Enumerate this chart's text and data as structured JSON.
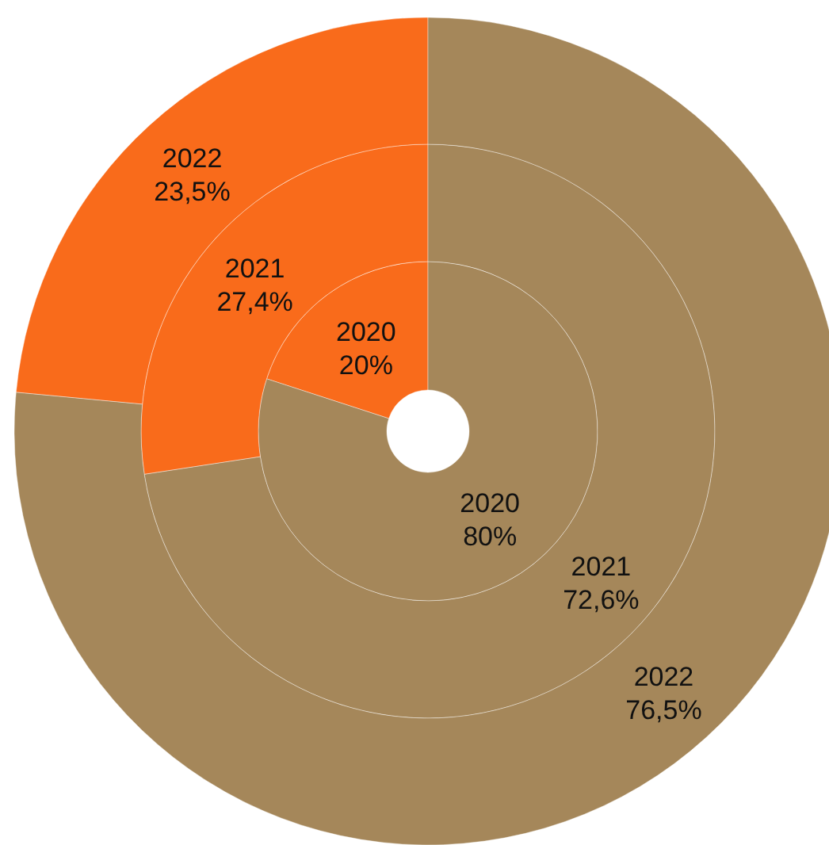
{
  "chart_data": {
    "type": "donut",
    "categories": [
      null,
      null
    ],
    "colors": [
      "#f96b1b",
      "#a5875a"
    ],
    "series": [
      {
        "name": "2020",
        "values": [
          20,
          80
        ],
        "value_labels": [
          "20%",
          "80%"
        ]
      },
      {
        "name": "2021",
        "values": [
          27.4,
          72.6
        ],
        "value_labels": [
          "27,4%",
          "72,6%"
        ]
      },
      {
        "name": "2022",
        "values": [
          23.5,
          76.5
        ],
        "value_labels": [
          "23,5%",
          "76,5%"
        ]
      }
    ]
  }
}
